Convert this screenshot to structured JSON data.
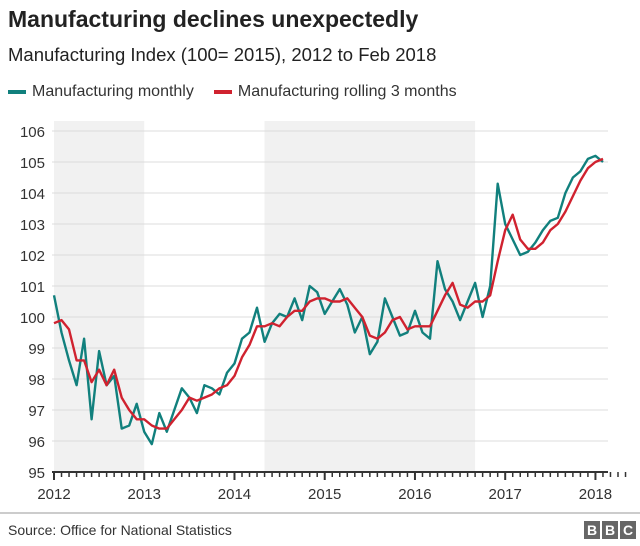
{
  "title": "Manufacturing declines unexpectedly",
  "subtitle": "Manufacturing Index (100= 2015), 2012 to Feb 2018",
  "source": "Source: Office for National Statistics",
  "logo": [
    "B",
    "B",
    "C"
  ],
  "chart_data": {
    "type": "line",
    "title": "Manufacturing declines unexpectedly",
    "subtitle": "Manufacturing Index (100= 2015), 2012 to Feb 2018",
    "x_start": "2012-01",
    "x_end": "2018-02",
    "x_unit": "month",
    "x_ticks": [
      "2012",
      "2013",
      "2014",
      "2015",
      "2016",
      "2017",
      "2018"
    ],
    "ylim": [
      95,
      106
    ],
    "y_ticks": [
      95,
      96,
      97,
      98,
      99,
      100,
      101,
      102,
      103,
      104,
      105,
      106
    ],
    "grid": "horizontal",
    "legend": "top-left",
    "shaded_periods": [
      [
        "2012-01",
        "2013-01"
      ],
      [
        "2014-05",
        "2016-09"
      ]
    ],
    "series": [
      {
        "name": "Manufacturing monthly",
        "color": "#11807d",
        "values": [
          100.7,
          99.5,
          98.6,
          97.8,
          99.3,
          96.7,
          98.9,
          97.8,
          98.1,
          96.4,
          96.5,
          97.2,
          96.3,
          95.9,
          96.9,
          96.3,
          97.0,
          97.7,
          97.4,
          96.9,
          97.8,
          97.7,
          97.5,
          98.2,
          98.5,
          99.3,
          99.5,
          100.3,
          99.2,
          99.8,
          100.1,
          100.0,
          100.6,
          99.9,
          101.0,
          100.8,
          100.1,
          100.5,
          100.9,
          100.4,
          99.5,
          100.0,
          98.8,
          99.2,
          100.6,
          100.0,
          99.4,
          99.5,
          100.2,
          99.5,
          99.3,
          101.8,
          100.9,
          100.5,
          99.9,
          100.5,
          101.1,
          100.0,
          101.0,
          104.3,
          103.0,
          102.5,
          102.0,
          102.1,
          102.4,
          102.8,
          103.1,
          103.2,
          104.0,
          104.5,
          104.7,
          105.1,
          105.2,
          105.0
        ]
      },
      {
        "name": "Manufacturing rolling 3 months",
        "color": "#d0222f",
        "values": [
          99.8,
          99.9,
          99.6,
          98.6,
          98.6,
          97.9,
          98.3,
          97.8,
          98.3,
          97.4,
          97.0,
          96.7,
          96.7,
          96.5,
          96.4,
          96.4,
          96.7,
          97.0,
          97.4,
          97.3,
          97.4,
          97.5,
          97.7,
          97.8,
          98.1,
          98.7,
          99.1,
          99.7,
          99.7,
          99.8,
          99.7,
          100.0,
          100.2,
          100.2,
          100.5,
          100.6,
          100.6,
          100.5,
          100.5,
          100.6,
          100.3,
          100.0,
          99.4,
          99.3,
          99.5,
          99.9,
          100.0,
          99.6,
          99.7,
          99.7,
          99.7,
          100.2,
          100.7,
          101.1,
          100.4,
          100.3,
          100.5,
          100.5,
          100.7,
          101.8,
          102.8,
          103.3,
          102.5,
          102.2,
          102.2,
          102.4,
          102.8,
          103.0,
          103.4,
          103.9,
          104.4,
          104.8,
          105.0,
          105.1
        ]
      }
    ]
  }
}
